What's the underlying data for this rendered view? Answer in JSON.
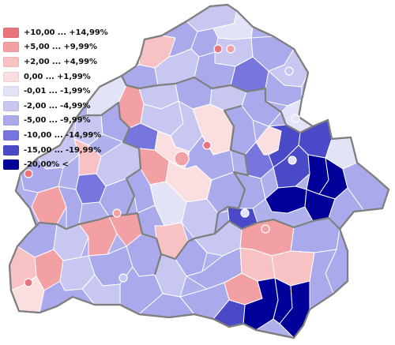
{
  "legend": {
    "items": [
      {
        "label": "+10,00 ... +14,99%",
        "color": "#e8747d"
      },
      {
        "label": "+5,00 ... +9,99%",
        "color": "#f3a0a4"
      },
      {
        "label": "+2,00 ... +4,99%",
        "color": "#f8c1c4"
      },
      {
        "label": "0,00 ... +1,99%",
        "color": "#fbdfe0"
      },
      {
        "label": "-0,01 ... -1,99%",
        "color": "#e3e3f8"
      },
      {
        "label": "-2,00 ... -4,99%",
        "color": "#c7c7f1"
      },
      {
        "label": "-5,00 ... -9,99%",
        "color": "#a9a9ec"
      },
      {
        "label": "-10,00 ... -14,99%",
        "color": "#7676de"
      },
      {
        "label": "-15,00 ... -19,99%",
        "color": "#4a4ac8"
      },
      {
        "label": "-20,00% <",
        "color": "#000099"
      }
    ]
  },
  "colors": {
    "border": "#7f7f7f",
    "background": "#ffffff"
  }
}
